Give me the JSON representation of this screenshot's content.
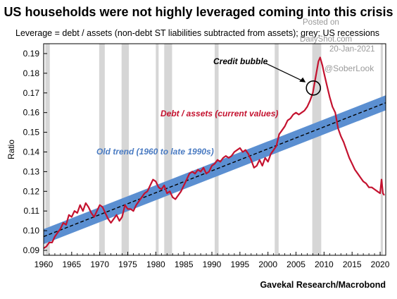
{
  "title": "US households were not highly leveraged coming into this crisis",
  "subtitle": "Leverage = debt / assets (non-debt ST liabilities subtracted from assets); grey: US recessions",
  "watermark": {
    "posted_on": "Posted on",
    "site": "DailyShot.com",
    "date": "20-Jan-2021",
    "handle": "@SoberLook"
  },
  "source": "Gavekal Research/Macrobond",
  "colors": {
    "series": "#c4122f",
    "trend_band": "#5b8fd1",
    "trend_line": "#000000",
    "recession": "#d6d6d6",
    "trend_label": "#4a7bc2",
    "series_label": "#c4122f"
  },
  "chart_data": {
    "type": "line",
    "title": "US households were not highly leveraged coming into this crisis",
    "ylabel": "Ratio",
    "xlabel": "",
    "xlim": [
      1960,
      2021
    ],
    "ylim": [
      0.09,
      0.19
    ],
    "x_ticks": [
      "1960",
      "1965",
      "1970",
      "1975",
      "1980",
      "1985",
      "1990",
      "1995",
      "2000",
      "2005",
      "2010",
      "2015",
      "2020"
    ],
    "y_ticks": [
      "0.09",
      "0.10",
      "0.11",
      "0.12",
      "0.13",
      "0.14",
      "0.15",
      "0.16",
      "0.17",
      "0.18",
      "0.19"
    ],
    "grid": false,
    "recessions": [
      [
        1960.3,
        1961.1
      ],
      [
        1969.9,
        1970.9
      ],
      [
        1973.9,
        1975.2
      ],
      [
        1980.0,
        1980.5
      ],
      [
        1981.5,
        1982.9
      ],
      [
        1990.5,
        1991.2
      ],
      [
        2001.2,
        2001.9
      ],
      [
        2007.9,
        2009.5
      ],
      [
        2020.1,
        2020.5
      ]
    ],
    "series": [
      {
        "name": "Debt / assets (current values)",
        "points": [
          [
            1960.0,
            0.091
          ],
          [
            1960.5,
            0.092
          ],
          [
            1961.0,
            0.094
          ],
          [
            1961.5,
            0.094
          ],
          [
            1962.0,
            0.097
          ],
          [
            1962.5,
            0.099
          ],
          [
            1963.0,
            0.101
          ],
          [
            1963.5,
            0.104
          ],
          [
            1964.0,
            0.103
          ],
          [
            1964.5,
            0.108
          ],
          [
            1965.0,
            0.107
          ],
          [
            1965.5,
            0.11
          ],
          [
            1966.0,
            0.109
          ],
          [
            1966.5,
            0.113
          ],
          [
            1967.0,
            0.11
          ],
          [
            1967.5,
            0.114
          ],
          [
            1968.0,
            0.112
          ],
          [
            1968.5,
            0.109
          ],
          [
            1969.0,
            0.107
          ],
          [
            1969.5,
            0.11
          ],
          [
            1970.0,
            0.113
          ],
          [
            1970.5,
            0.112
          ],
          [
            1971.0,
            0.109
          ],
          [
            1971.5,
            0.106
          ],
          [
            1972.0,
            0.104
          ],
          [
            1972.5,
            0.106
          ],
          [
            1973.0,
            0.108
          ],
          [
            1973.5,
            0.105
          ],
          [
            1974.0,
            0.107
          ],
          [
            1974.5,
            0.113
          ],
          [
            1975.0,
            0.111
          ],
          [
            1975.5,
            0.111
          ],
          [
            1976.0,
            0.11
          ],
          [
            1976.5,
            0.113
          ],
          [
            1977.0,
            0.115
          ],
          [
            1977.5,
            0.117
          ],
          [
            1978.0,
            0.119
          ],
          [
            1978.5,
            0.12
          ],
          [
            1979.0,
            0.123
          ],
          [
            1979.5,
            0.126
          ],
          [
            1980.0,
            0.125
          ],
          [
            1980.5,
            0.122
          ],
          [
            1981.0,
            0.121
          ],
          [
            1981.5,
            0.123
          ],
          [
            1982.0,
            0.119
          ],
          [
            1982.5,
            0.12
          ],
          [
            1983.0,
            0.117
          ],
          [
            1983.5,
            0.116
          ],
          [
            1984.0,
            0.118
          ],
          [
            1984.5,
            0.12
          ],
          [
            1985.0,
            0.123
          ],
          [
            1985.5,
            0.126
          ],
          [
            1986.0,
            0.129
          ],
          [
            1986.5,
            0.13
          ],
          [
            1987.0,
            0.129
          ],
          [
            1987.5,
            0.131
          ],
          [
            1988.0,
            0.13
          ],
          [
            1988.5,
            0.132
          ],
          [
            1989.0,
            0.129
          ],
          [
            1989.5,
            0.13
          ],
          [
            1990.0,
            0.133
          ],
          [
            1990.5,
            0.134
          ],
          [
            1991.0,
            0.136
          ],
          [
            1991.5,
            0.135
          ],
          [
            1992.0,
            0.137
          ],
          [
            1992.5,
            0.138
          ],
          [
            1993.0,
            0.137
          ],
          [
            1993.5,
            0.138
          ],
          [
            1994.0,
            0.14
          ],
          [
            1994.5,
            0.141
          ],
          [
            1995.0,
            0.142
          ],
          [
            1995.5,
            0.14
          ],
          [
            1996.0,
            0.141
          ],
          [
            1996.5,
            0.139
          ],
          [
            1997.0,
            0.136
          ],
          [
            1997.5,
            0.132
          ],
          [
            1998.0,
            0.133
          ],
          [
            1998.5,
            0.136
          ],
          [
            1999.0,
            0.133
          ],
          [
            1999.5,
            0.137
          ],
          [
            2000.0,
            0.135
          ],
          [
            2000.5,
            0.139
          ],
          [
            2001.0,
            0.141
          ],
          [
            2001.5,
            0.143
          ],
          [
            2002.0,
            0.149
          ],
          [
            2002.5,
            0.151
          ],
          [
            2003.0,
            0.153
          ],
          [
            2003.5,
            0.156
          ],
          [
            2004.0,
            0.157
          ],
          [
            2004.5,
            0.159
          ],
          [
            2005.0,
            0.16
          ],
          [
            2005.5,
            0.159
          ],
          [
            2006.0,
            0.16
          ],
          [
            2006.5,
            0.161
          ],
          [
            2007.0,
            0.163
          ],
          [
            2007.5,
            0.166
          ],
          [
            2008.0,
            0.17
          ],
          [
            2008.5,
            0.178
          ],
          [
            2009.0,
            0.186
          ],
          [
            2009.3,
            0.188
          ],
          [
            2009.7,
            0.184
          ],
          [
            2010.0,
            0.18
          ],
          [
            2010.5,
            0.174
          ],
          [
            2011.0,
            0.168
          ],
          [
            2011.5,
            0.163
          ],
          [
            2012.0,
            0.16
          ],
          [
            2012.5,
            0.152
          ],
          [
            2013.0,
            0.148
          ],
          [
            2013.5,
            0.145
          ],
          [
            2014.0,
            0.141
          ],
          [
            2014.5,
            0.137
          ],
          [
            2015.0,
            0.134
          ],
          [
            2015.5,
            0.131
          ],
          [
            2016.0,
            0.129
          ],
          [
            2016.5,
            0.127
          ],
          [
            2017.0,
            0.125
          ],
          [
            2017.5,
            0.124
          ],
          [
            2018.0,
            0.122
          ],
          [
            2018.5,
            0.122
          ],
          [
            2019.0,
            0.121
          ],
          [
            2019.5,
            0.12
          ],
          [
            2020.0,
            0.119
          ],
          [
            2020.25,
            0.126
          ],
          [
            2020.5,
            0.119
          ],
          [
            2020.75,
            0.118
          ]
        ]
      }
    ],
    "trend": {
      "label": "Old trend (1960 to late 1990s)",
      "start": [
        1960,
        0.097
      ],
      "end": [
        2021,
        0.165
      ],
      "band_half_width": 0.0038
    },
    "annotations": [
      {
        "text": "Credit bubble",
        "target": [
          2008.1,
          0.1725
        ]
      },
      {
        "text": "Debt / assets (current values)"
      },
      {
        "text": "Old trend (1960 to late 1990s)"
      }
    ]
  }
}
